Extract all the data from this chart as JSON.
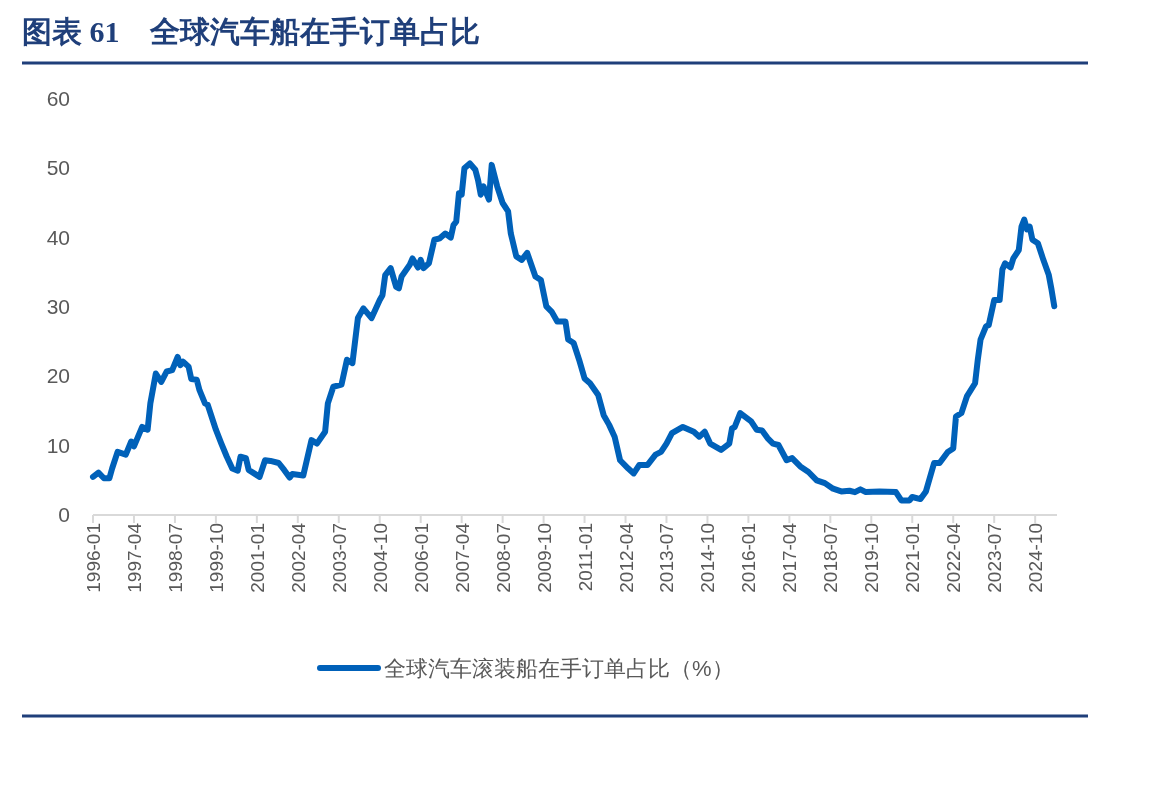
{
  "chart_data": {
    "type": "line",
    "title": "图表 61　全球汽车船在手订单占比",
    "legend": "bottom",
    "ylim": [
      0,
      60
    ],
    "yticks": [
      0,
      10,
      20,
      30,
      40,
      50,
      60
    ],
    "xlim": [
      "1996-01",
      "2025-06"
    ],
    "xticks": [
      "1996-01",
      "1997-04",
      "1998-07",
      "1999-10",
      "2001-01",
      "2002-04",
      "2003-07",
      "2004-10",
      "2006-01",
      "2007-04",
      "2008-07",
      "2009-10",
      "2011-01",
      "2012-04",
      "2013-07",
      "2014-10",
      "2016-01",
      "2017-04",
      "2018-07",
      "2019-10",
      "2021-01",
      "2022-04",
      "2023-07",
      "2024-10"
    ],
    "series": [
      {
        "name": "全球汽车滚装船在手订单占比（%）",
        "color": "#0061b9",
        "x": [
          "1996-01",
          "1996-03",
          "1996-05",
          "1996-07",
          "1996-08",
          "1996-10",
          "1997-01",
          "1997-03",
          "1997-04",
          "1997-07",
          "1997-09",
          "1997-10",
          "1997-12",
          "1998-02",
          "1998-04",
          "1998-06",
          "1998-08",
          "1998-09",
          "1998-10",
          "1998-12",
          "1999-01",
          "1999-03",
          "1999-04",
          "1999-06",
          "1999-07",
          "1999-10",
          "1999-12",
          "2000-02",
          "2000-04",
          "2000-06",
          "2000-07",
          "2000-09",
          "2000-10",
          "2000-12",
          "2001-02",
          "2001-04",
          "2001-06",
          "2001-09",
          "2001-11",
          "2002-01",
          "2002-02",
          "2002-06",
          "2002-09",
          "2002-11",
          "2003-02",
          "2003-03",
          "2003-05",
          "2003-08",
          "2003-10",
          "2003-12",
          "2004-02",
          "2004-04",
          "2004-07",
          "2004-10",
          "2004-11",
          "2004-12",
          "2005-02",
          "2005-04",
          "2005-05",
          "2005-06",
          "2005-09",
          "2005-10",
          "2005-12",
          "2006-01",
          "2006-02",
          "2006-04",
          "2006-06",
          "2006-08",
          "2006-10",
          "2006-12",
          "2007-01",
          "2007-02",
          "2007-03",
          "2007-04",
          "2007-05",
          "2007-07",
          "2007-09",
          "2007-10",
          "2007-11",
          "2007-12",
          "2008-02",
          "2008-03",
          "2008-05",
          "2008-07",
          "2008-09",
          "2008-10",
          "2008-12",
          "2009-02",
          "2009-04",
          "2009-07",
          "2009-09",
          "2009-11",
          "2010-01",
          "2010-03",
          "2010-06",
          "2010-07",
          "2010-09",
          "2010-11",
          "2011-01",
          "2011-03",
          "2011-06",
          "2011-08",
          "2011-10",
          "2011-12",
          "2012-02",
          "2012-05",
          "2012-07",
          "2012-09",
          "2012-12",
          "2013-03",
          "2013-05",
          "2013-07",
          "2013-09",
          "2014-01",
          "2014-05",
          "2014-07",
          "2014-09",
          "2014-11",
          "2015-03",
          "2015-06",
          "2015-07",
          "2015-08",
          "2015-10",
          "2016-02",
          "2016-04",
          "2016-06",
          "2016-08",
          "2016-10",
          "2016-12",
          "2017-03",
          "2017-05",
          "2017-08",
          "2017-11",
          "2018-02",
          "2018-05",
          "2018-08",
          "2018-11",
          "2019-02",
          "2019-04",
          "2019-06",
          "2019-08",
          "2020-01",
          "2020-07",
          "2020-09",
          "2020-12",
          "2021-01",
          "2021-04",
          "2021-06",
          "2021-09",
          "2021-11",
          "2022-02",
          "2022-04",
          "2022-05",
          "2022-07",
          "2022-09",
          "2022-12",
          "2023-01",
          "2023-02",
          "2023-04",
          "2023-05",
          "2023-07",
          "2023-09",
          "2023-10",
          "2023-11",
          "2024-01",
          "2024-02",
          "2024-04",
          "2024-05",
          "2024-06",
          "2024-07",
          "2024-08",
          "2024-09",
          "2024-11",
          "2025-01",
          "2025-03",
          "2025-04",
          "2025-05"
        ],
        "values": [
          5.5,
          6.1,
          5.3,
          5.3,
          6.7,
          9.1,
          8.7,
          10.6,
          9.9,
          12.7,
          12.3,
          16.1,
          20.4,
          19.2,
          20.7,
          20.9,
          22.8,
          21.6,
          22.1,
          21.4,
          19.6,
          19.5,
          18.0,
          16.1,
          15.9,
          12.3,
          10.3,
          8.4,
          6.7,
          6.4,
          8.4,
          8.2,
          6.5,
          6.0,
          5.5,
          7.9,
          7.8,
          7.5,
          6.5,
          5.4,
          5.9,
          5.7,
          10.8,
          10.3,
          12.0,
          16.1,
          18.5,
          18.8,
          22.4,
          21.9,
          28.4,
          29.8,
          28.4,
          31.0,
          31.7,
          34.6,
          35.6,
          32.9,
          32.7,
          34.4,
          36.1,
          37.0,
          35.7,
          36.8,
          35.6,
          36.3,
          39.7,
          39.9,
          40.6,
          40.0,
          41.8,
          42.3,
          46.4,
          46.2,
          50.0,
          50.7,
          49.8,
          48.3,
          46.2,
          47.4,
          45.5,
          50.5,
          47.4,
          45.0,
          43.8,
          40.6,
          37.3,
          36.8,
          37.8,
          34.4,
          33.9,
          30.1,
          29.3,
          27.9,
          27.9,
          25.3,
          24.8,
          22.4,
          19.7,
          19.0,
          17.3,
          14.4,
          13.0,
          11.3,
          7.9,
          6.7,
          6.0,
          7.2,
          7.2,
          8.7,
          9.1,
          10.3,
          11.8,
          12.7,
          12.0,
          11.3,
          12.0,
          10.3,
          9.4,
          10.3,
          12.5,
          12.7,
          14.7,
          13.5,
          12.3,
          12.2,
          11.1,
          10.3,
          10.1,
          7.9,
          8.2,
          7.0,
          6.2,
          5.0,
          4.6,
          3.8,
          3.4,
          3.5,
          3.3,
          3.7,
          3.3,
          3.4,
          3.3,
          2.1,
          2.1,
          2.6,
          2.3,
          3.4,
          7.5,
          7.5,
          9.1,
          9.6,
          14.2,
          14.7,
          17.1,
          19.0,
          22.4,
          25.3,
          27.2,
          27.4,
          31.0,
          31.0,
          35.4,
          36.3,
          35.7,
          37.0,
          38.2,
          41.6,
          42.6,
          41.2,
          41.6,
          39.7,
          39.2,
          36.8,
          34.6,
          32.5,
          30.1
        ]
      }
    ]
  }
}
